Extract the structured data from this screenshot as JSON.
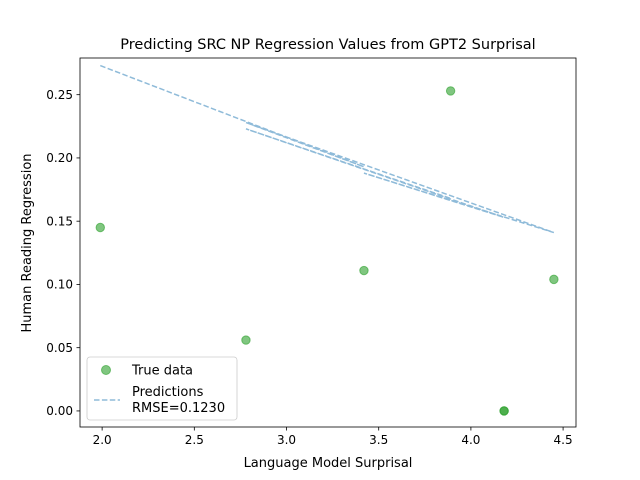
{
  "chart_data": {
    "type": "scatter",
    "title": "Predicting SRC NP Regression Values from GPT2 Surprisal",
    "xlabel": "Language Model Surprisal",
    "ylabel": "Human Reading Regression",
    "xlim": [
      1.88,
      4.57
    ],
    "ylim": [
      -0.0127,
      0.279
    ],
    "xticks": [
      2.0,
      2.5,
      3.0,
      3.5,
      4.0,
      4.5
    ],
    "xtick_labels": [
      "2.0",
      "2.5",
      "3.0",
      "3.5",
      "4.0",
      "4.5"
    ],
    "yticks": [
      0.0,
      0.05,
      0.1,
      0.15,
      0.2,
      0.25
    ],
    "ytick_labels": [
      "0.00",
      "0.05",
      "0.10",
      "0.15",
      "0.20",
      "0.25"
    ],
    "grid": false,
    "legend_position": "lower-left",
    "series": [
      {
        "name": "True data",
        "kind": "scatter",
        "color": "#2ca02c",
        "points": [
          {
            "x": 1.99,
            "y": 0.145
          },
          {
            "x": 2.78,
            "y": 0.056
          },
          {
            "x": 3.42,
            "y": 0.111
          },
          {
            "x": 3.89,
            "y": 0.253
          },
          {
            "x": 4.18,
            "y": 0.0
          },
          {
            "x": 4.18,
            "y": 0.0
          },
          {
            "x": 4.45,
            "y": 0.104
          }
        ]
      },
      {
        "name": "Predictions\nRMSE=0.1230",
        "kind": "line",
        "color": "#1f77b4",
        "points": [
          {
            "x": 1.99,
            "y": 0.273
          },
          {
            "x": 3.42,
            "y": 0.193
          },
          {
            "x": 2.78,
            "y": 0.228
          },
          {
            "x": 4.45,
            "y": 0.141
          },
          {
            "x": 3.42,
            "y": 0.188
          },
          {
            "x": 4.18,
            "y": 0.153
          },
          {
            "x": 2.78,
            "y": 0.223
          },
          {
            "x": 3.89,
            "y": 0.168
          }
        ]
      }
    ],
    "legend": {
      "entries": [
        "True data",
        "Predictions",
        "RMSE=0.1230"
      ]
    }
  }
}
